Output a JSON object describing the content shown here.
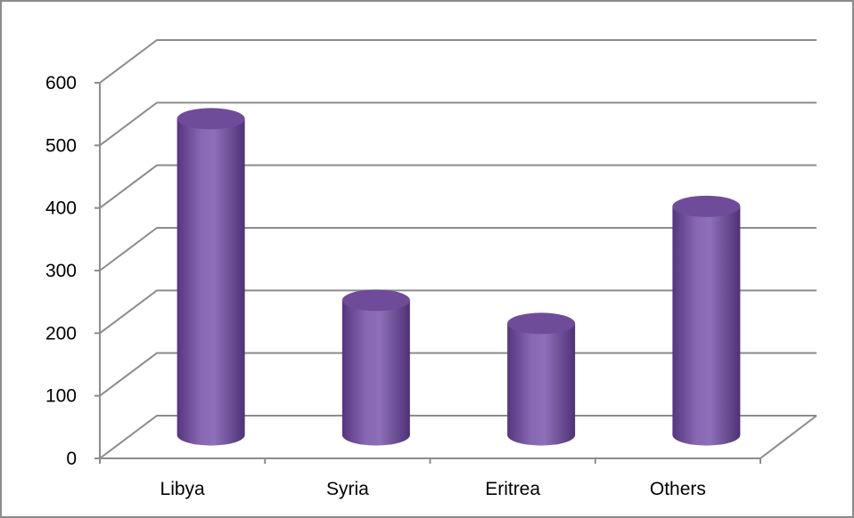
{
  "chart_data": {
    "type": "bar",
    "style": "3d-cylinder",
    "categories": [
      "Libya",
      "Syria",
      "Eritrea",
      "Others"
    ],
    "values": [
      505,
      215,
      178,
      365
    ],
    "yticks": [
      "0",
      "100",
      "200",
      "300",
      "400",
      "500",
      "600"
    ],
    "ylim": [
      0,
      600
    ],
    "title": "",
    "xlabel": "",
    "ylabel": "",
    "grid": true,
    "legend": "none"
  },
  "colors": {
    "bar_mid": "#8867b3",
    "bar_dark": "#4f3275",
    "bar_light": "#9a7fc6",
    "bar_top": "#6e4c9a",
    "grid": "#8c8c8c",
    "frame": "#8c8c8c"
  }
}
